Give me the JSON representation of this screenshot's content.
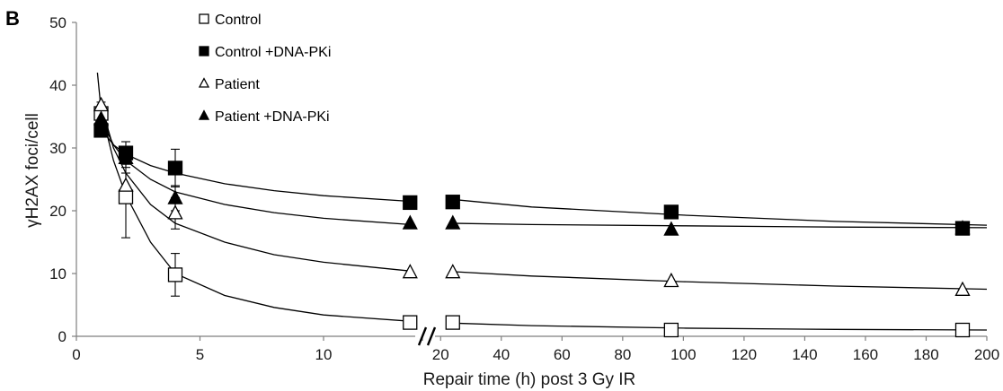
{
  "panel_label": "B",
  "colors": {
    "axis": "#7f7f7f",
    "marker": "#000000",
    "background": "#ffffff"
  },
  "chart_data": {
    "type": "scatter",
    "title": "",
    "xlabel": "Repair time (h) post 3 Gy IR",
    "ylabel": "γH2AX foci/cell",
    "ylim": [
      0,
      50
    ],
    "yticks": [
      0,
      10,
      20,
      30,
      40,
      50
    ],
    "x_segments": [
      {
        "xlim": [
          0,
          14
        ],
        "ticks": [
          0,
          5,
          10
        ]
      },
      {
        "xlim": [
          14,
          200
        ],
        "ticks": [
          20,
          40,
          60,
          80,
          100,
          120,
          140,
          160,
          180,
          200
        ]
      }
    ],
    "axis_break_x": 14,
    "grid": false,
    "legend_position": "top-center",
    "series": [
      {
        "name": "Control",
        "marker": "square-open",
        "x": [
          1,
          2,
          4,
          13.5,
          24,
          96,
          192
        ],
        "y": [
          35.5,
          22.2,
          9.8,
          2.2,
          2.2,
          1.0,
          1.0
        ],
        "err": [
          1.0,
          6.5,
          3.4,
          0,
          0,
          0,
          0
        ]
      },
      {
        "name": "Control +DNA-PKi",
        "marker": "square-filled",
        "x": [
          1,
          2,
          4,
          13.5,
          24,
          96,
          192
        ],
        "y": [
          32.8,
          29.2,
          26.8,
          21.3,
          21.4,
          19.8,
          17.2
        ],
        "err": [
          0.6,
          1.8,
          3.0,
          0,
          0,
          0,
          0
        ]
      },
      {
        "name": "Patient",
        "marker": "triangle-open",
        "x": [
          1,
          2,
          4,
          13.5,
          24,
          96,
          192
        ],
        "y": [
          36.8,
          24.0,
          19.6,
          10.2,
          10.2,
          8.8,
          7.4
        ],
        "err": [
          0.5,
          2.0,
          2.5,
          0,
          0,
          0,
          0
        ]
      },
      {
        "name": "Patient +DNA-PKi",
        "marker": "triangle-filled",
        "x": [
          1,
          2,
          4,
          13.5,
          24,
          96,
          192
        ],
        "y": [
          34.6,
          28.4,
          22.0,
          18.0,
          18.0,
          17.0,
          17.2
        ],
        "err": [
          0.8,
          1.5,
          2.0,
          0,
          0,
          0,
          0
        ]
      }
    ],
    "fit_curves": [
      {
        "series": "Control",
        "points": [
          [
            0.85,
            42
          ],
          [
            1,
            36
          ],
          [
            1.5,
            28
          ],
          [
            2,
            22.5
          ],
          [
            3,
            15
          ],
          [
            4,
            10
          ],
          [
            6,
            6.5
          ],
          [
            8,
            4.6
          ],
          [
            10,
            3.4
          ],
          [
            13.5,
            2.4
          ],
          [
            24,
            2.1
          ],
          [
            50,
            1.7
          ],
          [
            100,
            1.3
          ],
          [
            150,
            1.1
          ],
          [
            200,
            1.0
          ]
        ]
      },
      {
        "series": "Control +DNA-PKi",
        "points": [
          [
            1,
            33
          ],
          [
            1.5,
            30.5
          ],
          [
            2,
            29
          ],
          [
            3,
            27.2
          ],
          [
            4,
            26
          ],
          [
            6,
            24.3
          ],
          [
            8,
            23.2
          ],
          [
            10,
            22.4
          ],
          [
            13.5,
            21.5
          ],
          [
            24,
            21.8
          ],
          [
            50,
            20.6
          ],
          [
            100,
            19.3
          ],
          [
            150,
            18.3
          ],
          [
            200,
            17.7
          ]
        ]
      },
      {
        "series": "Patient",
        "points": [
          [
            1,
            36.8
          ],
          [
            1.5,
            30
          ],
          [
            2,
            26
          ],
          [
            3,
            21
          ],
          [
            4,
            18
          ],
          [
            6,
            15
          ],
          [
            8,
            13
          ],
          [
            10,
            11.8
          ],
          [
            13.5,
            10.4
          ],
          [
            24,
            10.3
          ],
          [
            50,
            9.6
          ],
          [
            100,
            8.7
          ],
          [
            150,
            8.0
          ],
          [
            200,
            7.5
          ]
        ]
      },
      {
        "series": "Patient +DNA-PKi",
        "points": [
          [
            1,
            34.6
          ],
          [
            1.5,
            30.5
          ],
          [
            2,
            28
          ],
          [
            3,
            25
          ],
          [
            4,
            23
          ],
          [
            6,
            21
          ],
          [
            8,
            19.7
          ],
          [
            10,
            18.8
          ],
          [
            13.5,
            17.8
          ],
          [
            24,
            18
          ],
          [
            50,
            17.8
          ],
          [
            100,
            17.6
          ],
          [
            150,
            17.4
          ],
          [
            200,
            17.3
          ]
        ]
      }
    ]
  }
}
